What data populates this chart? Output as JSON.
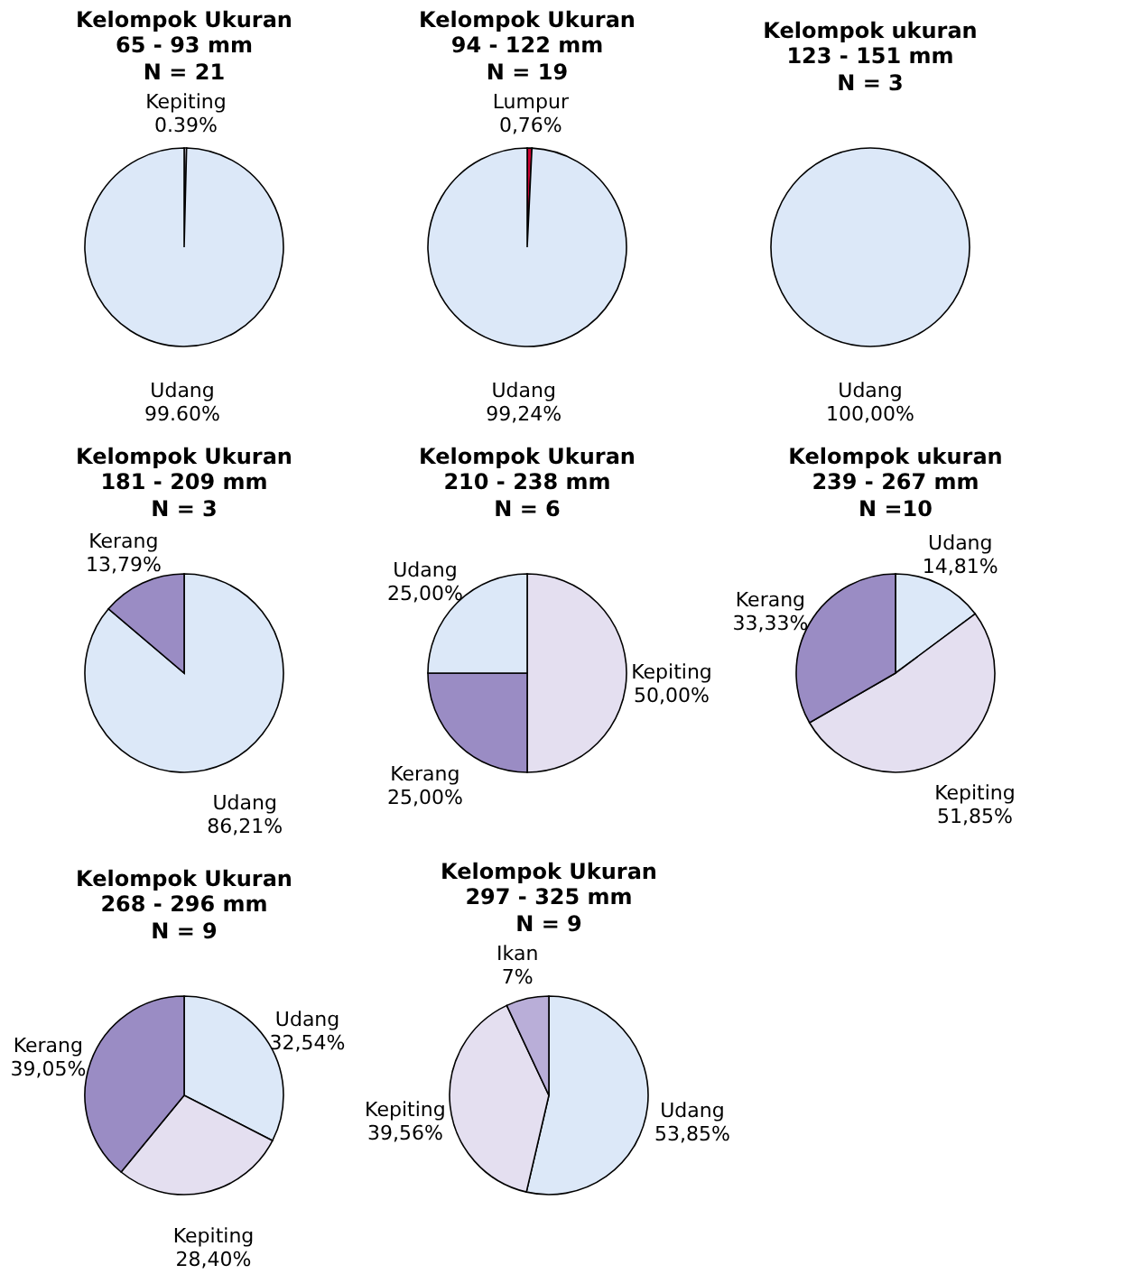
{
  "chart_data": [
    {
      "type": "pie",
      "title": "Kelompok Ukuran\n65 - 93 mm",
      "subtitle": "N = 21",
      "categories": [
        "Kepiting",
        "Udang"
      ],
      "values": [
        0.39,
        99.6
      ],
      "colors": [
        "#e4dff0",
        "#dce8f8"
      ],
      "value_labels": [
        "0.39%",
        "99.60%"
      ]
    },
    {
      "type": "pie",
      "title": "Kelompok Ukuran\n94 - 122 mm",
      "subtitle": "N = 19",
      "categories": [
        "Lumpur",
        "Udang"
      ],
      "values": [
        0.76,
        99.24
      ],
      "colors": [
        "#cc0033",
        "#dce8f8"
      ],
      "value_labels": [
        "0,76%",
        "99,24%"
      ]
    },
    {
      "type": "pie",
      "title": "Kelompok ukuran\n123 - 151 mm",
      "subtitle": "N = 3",
      "categories": [
        "Udang"
      ],
      "values": [
        100
      ],
      "colors": [
        "#dce8f8"
      ],
      "value_labels": [
        "100,00%"
      ]
    },
    {
      "type": "pie",
      "title": "Kelompok Ukuran\n181 - 209 mm",
      "subtitle": "N = 3",
      "categories": [
        "Udang",
        "Kerang"
      ],
      "values": [
        86.21,
        13.79
      ],
      "colors": [
        "#dce8f8",
        "#9a8cc4"
      ],
      "value_labels": [
        "86,21%",
        "13,79%"
      ]
    },
    {
      "type": "pie",
      "title": "Kelompok Ukuran\n210 - 238 mm",
      "subtitle": "N = 6",
      "categories": [
        "Kepiting",
        "Kerang",
        "Udang"
      ],
      "values": [
        50,
        25,
        25
      ],
      "colors": [
        "#e4dff0",
        "#9a8cc4",
        "#dce8f8"
      ],
      "value_labels": [
        "50,00%",
        "25,00%",
        "25,00%"
      ]
    },
    {
      "type": "pie",
      "title": "Kelompok ukuran\n239 - 267 mm",
      "subtitle": "N =10",
      "categories": [
        "Udang",
        "Kepiting",
        "Kerang"
      ],
      "values": [
        14.81,
        51.85,
        33.33
      ],
      "colors": [
        "#dce8f8",
        "#e4dff0",
        "#9a8cc4"
      ],
      "value_labels": [
        "14,81%",
        "51,85%",
        "33,33%"
      ]
    },
    {
      "type": "pie",
      "title": "Kelompok Ukuran\n268 - 296 mm",
      "subtitle": "N = 9",
      "categories": [
        "Udang",
        "Kepiting",
        "Kerang"
      ],
      "values": [
        32.54,
        28.4,
        39.05
      ],
      "colors": [
        "#dce8f8",
        "#e4dff0",
        "#9a8cc4"
      ],
      "value_labels": [
        "32,54%",
        "28,40%",
        "39,05%"
      ]
    },
    {
      "type": "pie",
      "title": "Kelompok Ukuran\n297 - 325 mm",
      "subtitle": "N = 9",
      "categories": [
        "Udang",
        "Kepiting",
        "Ikan"
      ],
      "values": [
        53.85,
        39.56,
        7
      ],
      "colors": [
        "#dce8f8",
        "#e4dff0",
        "#b9aed8"
      ],
      "value_labels": [
        "53,85%",
        "39,56%",
        "7%"
      ]
    }
  ]
}
